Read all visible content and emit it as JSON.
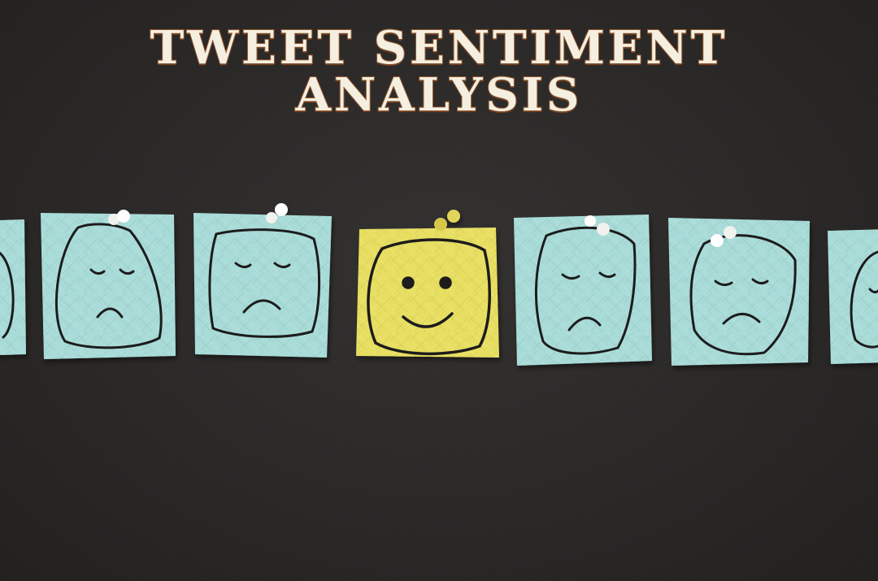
{
  "title": {
    "line1": "TWEET SENTIMENT",
    "line2": "ANALYSIS"
  },
  "colors": {
    "background": "#2a2827",
    "title_fill": "#f4efe0",
    "title_outline": "#9a5a2e",
    "sad_note": "#a9dcd8",
    "happy_note": "#e8df62",
    "marker_ink": "#1e1e1e",
    "pin": "#f1f1ee"
  },
  "notes": [
    {
      "mood": "sad",
      "icon": "sad-face-icon"
    },
    {
      "mood": "sad",
      "icon": "sad-face-icon"
    },
    {
      "mood": "sad",
      "icon": "sad-face-icon"
    },
    {
      "mood": "happy",
      "icon": "happy-face-icon"
    },
    {
      "mood": "sad",
      "icon": "sad-face-icon"
    },
    {
      "mood": "sad",
      "icon": "sad-face-icon"
    },
    {
      "mood": "sad",
      "icon": "sad-face-icon"
    }
  ]
}
